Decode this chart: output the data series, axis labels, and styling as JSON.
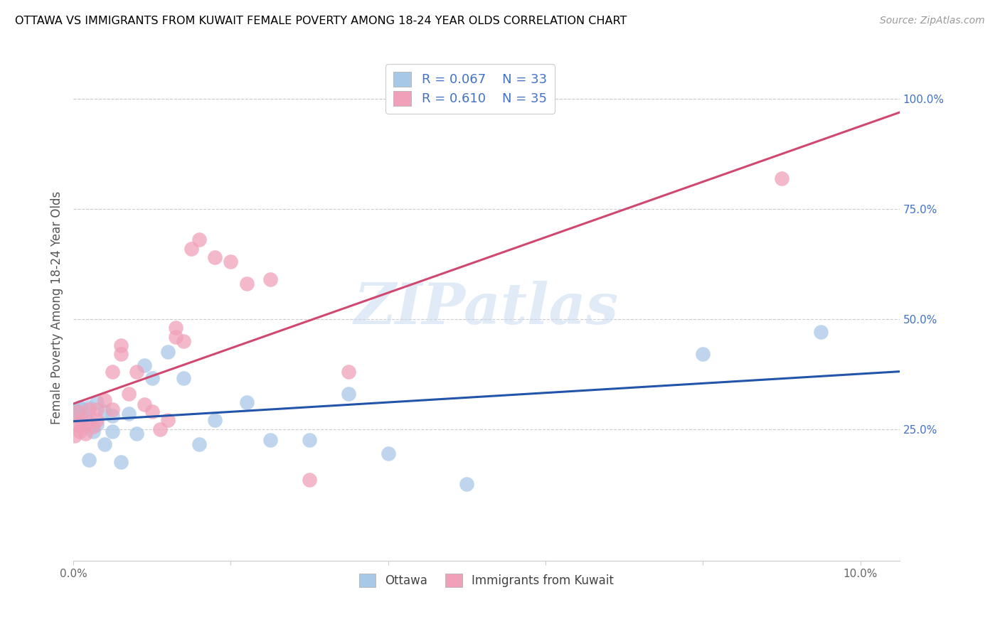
{
  "title": "OTTAWA VS IMMIGRANTS FROM KUWAIT FEMALE POVERTY AMONG 18-24 YEAR OLDS CORRELATION CHART",
  "source": "Source: ZipAtlas.com",
  "ylabel": "Female Poverty Among 18-24 Year Olds",
  "xlim": [
    0.0,
    0.105
  ],
  "ylim": [
    -0.05,
    1.1
  ],
  "xticks": [
    0.0,
    0.02,
    0.04,
    0.06,
    0.08,
    0.1
  ],
  "xticklabels": [
    "0.0%",
    "",
    "",
    "",
    "",
    "10.0%"
  ],
  "yticks_right": [
    0.25,
    0.5,
    0.75,
    1.0
  ],
  "ytick_labels_right": [
    "25.0%",
    "50.0%",
    "75.0%",
    "100.0%"
  ],
  "ottawa_color": "#a8c8e8",
  "kuwait_color": "#f0a0b8",
  "ottawa_line_color": "#2255aa",
  "kuwait_line_color": "#d04870",
  "legend_color": "#4472c4",
  "watermark_text": "ZIPatlas",
  "ottawa_x": [
    0.0002,
    0.0004,
    0.0006,
    0.0008,
    0.001,
    0.001,
    0.0015,
    0.002,
    0.002,
    0.0025,
    0.003,
    0.003,
    0.004,
    0.004,
    0.005,
    0.005,
    0.006,
    0.007,
    0.008,
    0.009,
    0.01,
    0.012,
    0.014,
    0.016,
    0.018,
    0.022,
    0.025,
    0.03,
    0.035,
    0.04,
    0.05,
    0.08,
    0.095
  ],
  "ottawa_y": [
    0.295,
    0.29,
    0.285,
    0.3,
    0.295,
    0.28,
    0.275,
    0.3,
    0.18,
    0.245,
    0.31,
    0.26,
    0.29,
    0.215,
    0.28,
    0.245,
    0.175,
    0.285,
    0.24,
    0.395,
    0.365,
    0.425,
    0.365,
    0.215,
    0.27,
    0.31,
    0.225,
    0.225,
    0.33,
    0.195,
    0.125,
    0.42,
    0.47
  ],
  "kuwait_x": [
    0.0002,
    0.0004,
    0.0006,
    0.0008,
    0.001,
    0.001,
    0.0015,
    0.002,
    0.002,
    0.0025,
    0.003,
    0.003,
    0.004,
    0.005,
    0.005,
    0.006,
    0.006,
    0.007,
    0.008,
    0.009,
    0.01,
    0.011,
    0.012,
    0.013,
    0.013,
    0.014,
    0.015,
    0.016,
    0.018,
    0.02,
    0.022,
    0.025,
    0.03,
    0.035,
    0.09
  ],
  "kuwait_y": [
    0.235,
    0.26,
    0.29,
    0.245,
    0.27,
    0.255,
    0.24,
    0.295,
    0.265,
    0.255,
    0.295,
    0.27,
    0.315,
    0.38,
    0.295,
    0.44,
    0.42,
    0.33,
    0.38,
    0.305,
    0.29,
    0.25,
    0.27,
    0.46,
    0.48,
    0.45,
    0.66,
    0.68,
    0.64,
    0.63,
    0.58,
    0.59,
    0.135,
    0.38,
    0.82
  ]
}
